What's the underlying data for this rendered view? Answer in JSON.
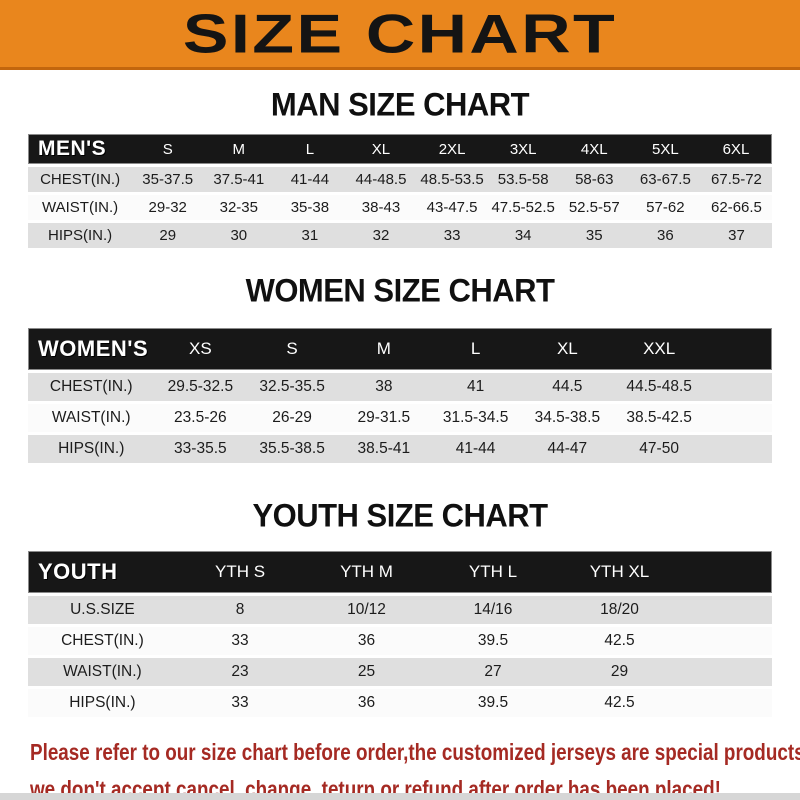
{
  "banner": {
    "title": "SIZE CHART"
  },
  "sections": [
    {
      "title": "MAN SIZE CHART",
      "header_label": "MEN'S",
      "columns": [
        "S",
        "M",
        "L",
        "XL",
        "2XL",
        "3XL",
        "4XL",
        "5XL",
        "6XL"
      ],
      "rows": [
        {
          "label": "CHEST(IN.)",
          "values": [
            "35-37.5",
            "37.5-41",
            "41-44",
            "44-48.5",
            "48.5-53.5",
            "53.5-58",
            "58-63",
            "63-67.5",
            "67.5-72"
          ]
        },
        {
          "label": "WAIST(IN.)",
          "values": [
            "29-32",
            "32-35",
            "35-38",
            "38-43",
            "43-47.5",
            "47.5-52.5",
            "52.5-57",
            "57-62",
            "62-66.5"
          ]
        },
        {
          "label": "HIPS(IN.)",
          "values": [
            "29",
            "30",
            "31",
            "32",
            "33",
            "34",
            "35",
            "36",
            "37"
          ]
        }
      ]
    },
    {
      "title": "WOMEN SIZE CHART",
      "header_label": "WOMEN'S",
      "columns": [
        "XS",
        "S",
        "M",
        "L",
        "XL",
        "XXL"
      ],
      "rows": [
        {
          "label": "CHEST(IN.)",
          "values": [
            "29.5-32.5",
            "32.5-35.5",
            "38",
            "41",
            "44.5",
            "44.5-48.5"
          ]
        },
        {
          "label": "WAIST(IN.)",
          "values": [
            "23.5-26",
            "26-29",
            "29-31.5",
            "31.5-34.5",
            "34.5-38.5",
            "38.5-42.5"
          ]
        },
        {
          "label": "HIPS(IN.)",
          "values": [
            "33-35.5",
            "35.5-38.5",
            "38.5-41",
            "41-44",
            "44-47",
            "47-50"
          ]
        }
      ]
    },
    {
      "title": "YOUTH SIZE CHART",
      "header_label": "YOUTH",
      "columns": [
        "YTH S",
        "YTH M",
        "YTH L",
        "YTH XL"
      ],
      "rows": [
        {
          "label": "U.S.SIZE",
          "values": [
            "8",
            "10/12",
            "14/16",
            "18/20"
          ]
        },
        {
          "label": "CHEST(IN.)",
          "values": [
            "33",
            "36",
            "39.5",
            "42.5"
          ]
        },
        {
          "label": "WAIST(IN.)",
          "values": [
            "23",
            "25",
            "27",
            "29"
          ]
        },
        {
          "label": "HIPS(IN.)",
          "values": [
            "33",
            "36",
            "39.5",
            "42.5"
          ]
        }
      ]
    }
  ],
  "footer": {
    "lines": [
      "Please refer to our size chart before order,the customized jerseys are special products,",
      "we don't accept cancel, change, teturn or refund after order has been placed!"
    ]
  },
  "colors": {
    "banner_orange": "#E9861D",
    "banner_border": "#C2660D",
    "header_bar_black": "#171717",
    "row_gray": "#DFDFDF",
    "row_white": "#FBFBFB",
    "notice_red": "#A52A23"
  }
}
